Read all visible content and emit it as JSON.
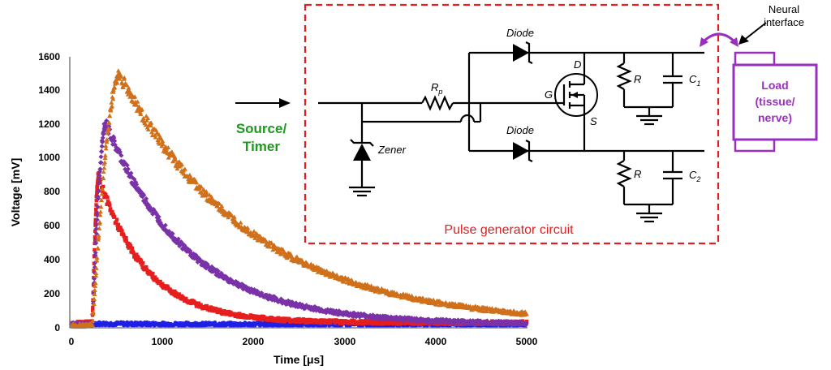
{
  "chart_data": {
    "type": "scatter",
    "xlabel": "Time  [μs]",
    "ylabel": "Voltage [mV]",
    "xlim": [
      0,
      5000
    ],
    "ylim": [
      0,
      1600
    ],
    "x_ticks": [
      "0",
      "1000",
      "2000",
      "3000",
      "4000",
      "5000"
    ],
    "y_ticks": [
      "0",
      "200",
      "400",
      "600",
      "800",
      "1000",
      "1200",
      "1400",
      "1600"
    ],
    "grid": false,
    "legend": "none",
    "series": [
      {
        "color": "#1f1fe6",
        "marker": "circle",
        "onset": 230,
        "peak_t": 240,
        "peak_v": 25,
        "tau": 900,
        "baseline": 20
      },
      {
        "color": "#e61e1e",
        "marker": "square",
        "onset": 230,
        "peak_t": 300,
        "peak_v": 890,
        "tau": 520,
        "baseline": 30
      },
      {
        "color": "#7a32a8",
        "marker": "diamond",
        "onset": 230,
        "peak_t": 380,
        "peak_v": 1200,
        "tau": 900,
        "baseline": 20
      },
      {
        "color": "#d0701a",
        "marker": "triangle",
        "onset": 230,
        "peak_t": 530,
        "peak_v": 1490,
        "tau": 1450,
        "baseline": 15
      }
    ]
  },
  "diagram": {
    "source_label_line1": "Source/",
    "source_label_line2": "Timer",
    "box_caption": "Pulse generator circuit",
    "diode_top": "Diode",
    "diode_bottom": "Diode",
    "rp_label": "R",
    "rp_sub": "p",
    "zener_label": "Zener",
    "gate_label": "G",
    "drain_label": "D",
    "source_pin_label": "S",
    "r1_label": "R",
    "r2_label": "R",
    "c1_label": "C",
    "c1_sub": "1",
    "c2_label": "C",
    "c2_sub": "2",
    "neural_line1": "Neural",
    "neural_line2": "interface",
    "load_line1": "Load",
    "load_line2": "(tissue/",
    "load_line3": "nerve)",
    "colors": {
      "source": "#1a9a1a",
      "box": "#e02020",
      "load": "#9a2fbf"
    }
  }
}
